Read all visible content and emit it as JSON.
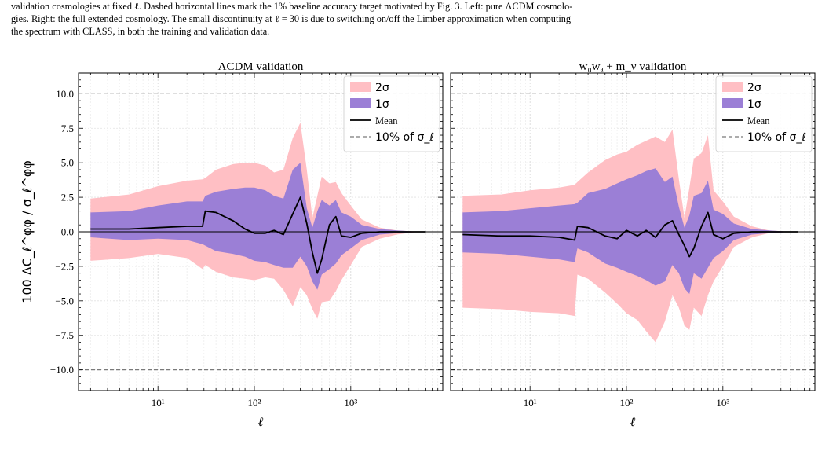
{
  "caption": {
    "lines": [
      "validation cosmologies at fixed ℓ. Dashed horizontal lines mark the 1% baseline accuracy target motivated by Fig. 3. Left: pure ΛCDM cosmolo-",
      "gies. Right: the full extended cosmology. The small discontinuity at ℓ = 30 is due to switching on/off the Limber approximation when computing",
      "the spectrum with CLASS, in both the training and validation data."
    ]
  },
  "colors": {
    "band_2sigma": "#ffbfc4",
    "band_1sigma": "#9b7fd6",
    "mean": "#000000",
    "ref_line": "#7a7a7a"
  },
  "y_axis": {
    "label": "100 ΔC_ℓ^φφ / σ_ℓ^φφ",
    "ylim": [
      -11.5,
      11.5
    ],
    "ticks": [
      "10.0",
      "7.5",
      "5.0",
      "2.5",
      "0.0",
      "−2.5",
      "−5.0",
      "−7.5",
      "−10.0"
    ],
    "tick_values": [
      10,
      7.5,
      5,
      2.5,
      0,
      -2.5,
      -5,
      -7.5,
      -10
    ]
  },
  "x_axis": {
    "label": "ℓ",
    "scale": "log",
    "xlim": [
      1.5,
      9000
    ],
    "ticks": [
      "10¹",
      "10²",
      "10³"
    ],
    "tick_values": [
      10,
      100,
      1000
    ]
  },
  "legend": {
    "placement": "top-right",
    "entries": [
      "2σ",
      "1σ",
      "Mean",
      "10% of σ_ℓ"
    ]
  },
  "chart_data": [
    {
      "type": "area",
      "title": "ΛCDM validation",
      "x": [
        2,
        5,
        10,
        20,
        29,
        31,
        40,
        60,
        80,
        100,
        130,
        160,
        200,
        250,
        300,
        350,
        400,
        450,
        500,
        600,
        700,
        800,
        1000,
        1300,
        2000,
        3000,
        5000,
        6000
      ],
      "series": [
        {
          "name": "2σ",
          "upper": [
            2.4,
            2.7,
            3.3,
            3.7,
            3.8,
            3.9,
            4.5,
            4.9,
            5.0,
            5.0,
            4.8,
            4.3,
            4.5,
            6.8,
            7.9,
            4.5,
            1.0,
            2.6,
            4.0,
            3.5,
            3.6,
            2.8,
            1.9,
            0.9,
            0.3,
            0.1,
            0.0,
            0.0
          ],
          "lower": [
            -2.1,
            -1.9,
            -1.6,
            -1.9,
            -2.7,
            -2.4,
            -2.9,
            -3.3,
            -3.4,
            -3.5,
            -3.3,
            -3.4,
            -4.2,
            -5.4,
            -4.0,
            -4.6,
            -5.6,
            -6.3,
            -5.1,
            -5.0,
            -4.3,
            -3.5,
            -2.4,
            -1.1,
            -0.5,
            -0.2,
            0.0,
            0.0
          ]
        },
        {
          "name": "1σ",
          "upper": [
            1.4,
            1.5,
            1.9,
            2.2,
            2.2,
            2.6,
            2.9,
            3.1,
            3.2,
            3.2,
            3.0,
            2.6,
            2.4,
            4.5,
            5.0,
            1.7,
            0.3,
            1.5,
            2.3,
            1.9,
            2.3,
            1.4,
            1.1,
            0.5,
            0.2,
            0.1,
            0.0,
            0.0
          ],
          "lower": [
            -0.4,
            -0.6,
            -0.5,
            -0.6,
            -0.9,
            -1.0,
            -1.4,
            -1.6,
            -1.8,
            -2.1,
            -2.2,
            -2.4,
            -2.6,
            -2.6,
            -1.8,
            -2.5,
            -3.6,
            -4.2,
            -3.1,
            -2.7,
            -2.3,
            -1.7,
            -1.2,
            -0.6,
            -0.2,
            -0.1,
            0.0,
            0.0
          ]
        },
        {
          "name": "Mean",
          "values": [
            0.2,
            0.2,
            0.3,
            0.4,
            0.4,
            1.5,
            1.4,
            0.8,
            0.2,
            -0.1,
            -0.1,
            0.1,
            -0.2,
            1.3,
            2.5,
            0.6,
            -1.5,
            -3.0,
            -2.0,
            0.5,
            1.1,
            -0.3,
            -0.4,
            -0.1,
            0.0,
            0.0,
            0.0,
            0.0
          ]
        }
      ],
      "reference_lines": {
        "name": "10% of σ_ℓ",
        "y": [
          10,
          -10
        ]
      }
    },
    {
      "type": "area",
      "title": "w₀wₐ + m_ν validation",
      "x": [
        2,
        5,
        10,
        20,
        29,
        31,
        40,
        60,
        80,
        100,
        130,
        160,
        200,
        250,
        300,
        350,
        400,
        450,
        500,
        600,
        700,
        800,
        1000,
        1300,
        2000,
        3000,
        5000,
        6000
      ],
      "series": [
        {
          "name": "2σ",
          "upper": [
            2.6,
            2.7,
            3.0,
            3.2,
            3.4,
            3.6,
            4.3,
            5.2,
            5.6,
            5.8,
            6.3,
            6.6,
            6.9,
            6.5,
            7.4,
            3.8,
            1.0,
            3.2,
            5.3,
            5.7,
            7.0,
            3.0,
            2.2,
            1.1,
            0.4,
            0.1,
            0.0,
            0.0
          ],
          "lower": [
            -5.5,
            -5.6,
            -5.8,
            -5.9,
            -6.1,
            -3.1,
            -3.4,
            -4.4,
            -5.2,
            -5.9,
            -6.4,
            -7.2,
            -8.0,
            -6.5,
            -4.6,
            -5.5,
            -6.8,
            -7.1,
            -5.5,
            -6.1,
            -4.6,
            -3.6,
            -2.5,
            -1.1,
            -0.4,
            -0.1,
            0.0,
            0.0
          ]
        },
        {
          "name": "1σ",
          "upper": [
            1.4,
            1.5,
            1.7,
            1.9,
            2.0,
            2.1,
            2.8,
            3.1,
            3.5,
            3.8,
            4.1,
            4.4,
            4.6,
            3.6,
            4.0,
            1.8,
            0.3,
            1.2,
            2.6,
            2.8,
            3.7,
            1.6,
            1.3,
            0.6,
            0.2,
            0.1,
            0.0,
            0.0
          ],
          "lower": [
            -1.5,
            -1.6,
            -1.8,
            -2.0,
            -2.2,
            -1.2,
            -1.5,
            -2.3,
            -2.6,
            -2.9,
            -3.2,
            -3.5,
            -3.9,
            -3.6,
            -2.4,
            -3.0,
            -4.1,
            -4.5,
            -3.0,
            -3.4,
            -2.6,
            -1.9,
            -1.4,
            -0.6,
            -0.2,
            -0.1,
            0.0,
            0.0
          ]
        },
        {
          "name": "Mean",
          "values": [
            -0.2,
            -0.3,
            -0.3,
            -0.4,
            -0.6,
            0.4,
            0.3,
            -0.3,
            -0.5,
            0.1,
            -0.3,
            0.1,
            -0.4,
            0.5,
            0.8,
            -0.2,
            -1.0,
            -1.8,
            -1.2,
            0.4,
            1.4,
            -0.2,
            -0.5,
            -0.1,
            0.0,
            0.0,
            0.0,
            0.0
          ]
        }
      ],
      "reference_lines": {
        "name": "10% of σ_ℓ",
        "y": [
          10,
          -10
        ]
      }
    }
  ]
}
